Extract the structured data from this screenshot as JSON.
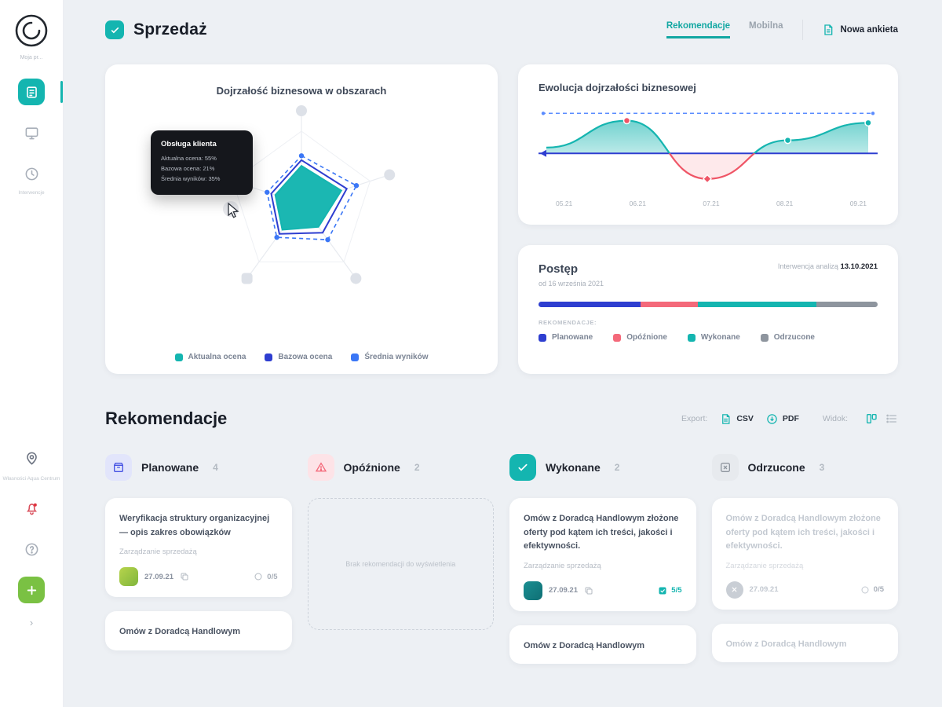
{
  "app": {
    "accent": "#14b5b0",
    "indigo": "#2e3ed0",
    "blue": "#3b77f6",
    "red": "#f4697a",
    "gray": "#8e959e"
  },
  "sidebar": {
    "workspace_label": "Moja pr...",
    "history_label": "Interwencje",
    "location_label": "Własności Aqua Centrum"
  },
  "header": {
    "title": "Sprzedaż",
    "tab_recommendations": "Rekomendacje",
    "tab_mobile": "Mobilna",
    "new_survey": "Nowa ankieta"
  },
  "radar_card": {
    "title": "Dojrzałość biznesowa w obszarach",
    "tooltip": {
      "title": "Obsługa klienta",
      "line1": "Aktualna ocena: 55%",
      "line2": "Bazowa ocena: 21%",
      "line3": "Średnia wyników: 35%"
    },
    "legend": [
      {
        "label": "Aktualna ocena",
        "color": "#14b5b0"
      },
      {
        "label": "Bazowa ocena",
        "color": "#2e3ed0"
      },
      {
        "label": "Średnia wyników",
        "color": "#3b77f6"
      }
    ]
  },
  "evolution_card": {
    "title": "Ewolucja dojrzałości biznesowej"
  },
  "progress_card": {
    "title": "Postęp",
    "subtitle": "od 16 września 2021",
    "note_label": "Interwencja analizą",
    "note_date": "13.10.2021",
    "summary_label": "Rekomendacje:",
    "legend": [
      {
        "label": "Planowane",
        "color": "#2e3ed0"
      },
      {
        "label": "Opóźnione",
        "color": "#f4697a"
      },
      {
        "label": "Wykonane",
        "color": "#14b5b0"
      },
      {
        "label": "Odrzucone",
        "color": "#8e959e"
      }
    ]
  },
  "recommendations": {
    "title": "Rekomendacje",
    "export_label": "Export:",
    "csv": "CSV",
    "pdf": "PDF",
    "view_label": "Widok:",
    "columns": [
      {
        "label": "Planowane",
        "count": "4"
      },
      {
        "label": "Opóźnione",
        "count": "2"
      },
      {
        "label": "Wykonane",
        "count": "2"
      },
      {
        "label": "Odrzucone",
        "count": "3"
      }
    ],
    "cards": {
      "planned": {
        "title": "Weryfikacja struktury organizacyjnej — opis zakres obowiązków",
        "category": "Zarządzanie sprzedażą",
        "date": "27.09.21",
        "progress": "0/5"
      },
      "delayed_placeholder": "Brak rekomendacji do wyświetlenia",
      "done": {
        "title": "Omów z Doradcą Handlowym złożone oferty pod kątem ich treści, jakości i efektywności.",
        "category": "Zarządzanie sprzedażą",
        "date": "27.09.21",
        "progress": "5/5"
      },
      "rejected": {
        "title": "Omów z Doradcą Handlowym złożone oferty pod kątem ich treści, jakości i efektywności.",
        "category": "Zarządzanie sprzedażą",
        "date": "27.09.21",
        "progress": "0/5"
      },
      "planned_next_title": "Omów z Doradcą Handlowym",
      "done_next_title": "Omów z Doradcą Handlowym",
      "rejected_next_title": "Omów z Doradcą Handlowym"
    }
  },
  "chart_data": [
    {
      "type": "radar",
      "title": "Dojrzałość biznesowa w obszarach",
      "max": 100,
      "series": [
        {
          "name": "Średnia wyników",
          "values": [
            66,
            80,
            62,
            58,
            50
          ],
          "color": "#3b77f6",
          "style": "dashed"
        },
        {
          "name": "Bazowa ocena",
          "values": [
            60,
            66,
            50,
            52,
            44
          ],
          "color": "#2e3ed0",
          "style": "line"
        },
        {
          "name": "Aktualna ocena",
          "values": [
            52,
            58,
            40,
            45,
            38
          ],
          "color": "#14b5b0",
          "style": "fill"
        }
      ]
    },
    {
      "type": "line",
      "title": "Ewolucja dojrzałości biznesowej",
      "x": [
        "05.21",
        "06.21",
        "07.21",
        "08.21",
        "09.21"
      ],
      "series": [
        {
          "name": "Dojrzałość biznesowa",
          "values": [
            8,
            45,
            -35,
            18,
            42
          ]
        }
      ],
      "baseline": 0,
      "target": 55,
      "ylim": [
        -45,
        65
      ],
      "markers": [
        {
          "i": 1,
          "color": "#ef5566",
          "shape": "circle"
        },
        {
          "i": 2,
          "color": "#ef5566",
          "shape": "diamond"
        },
        {
          "i": 3,
          "color": "#14b5b0",
          "shape": "circle"
        },
        {
          "i": 4,
          "color": "#14b5b0",
          "shape": "circle"
        }
      ]
    },
    {
      "type": "progress",
      "segments": [
        {
          "name": "Planowane",
          "value": 30,
          "color": "#2e3ed0"
        },
        {
          "name": "Opóźnione",
          "value": 17,
          "color": "#f4697a"
        },
        {
          "name": "Wykonane",
          "value": 35,
          "color": "#14b5b0"
        },
        {
          "name": "Odrzucone",
          "value": 18,
          "color": "#8e959e"
        }
      ]
    }
  ]
}
